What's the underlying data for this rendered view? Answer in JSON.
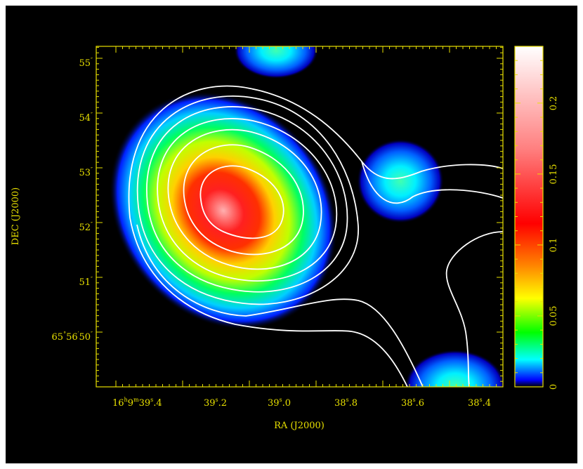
{
  "colors": {
    "background": "#000000",
    "frame": "#e8e000",
    "labels": "#e8e000",
    "contours": "#ffffff"
  },
  "image": {
    "colormap": [
      "#000000",
      "#0000ff",
      "#00ffff",
      "#00ff00",
      "#ffff00",
      "#ff8000",
      "#ff0000",
      "#ffffff"
    ]
  },
  "axes": {
    "x_label": "RA (J2000)",
    "y_label": "DEC (J2000)",
    "x_ticks": [
      {
        "h": "16",
        "m": "9",
        "s": "39",
        "f": ".4",
        "prefix": true
      },
      {
        "s": "39",
        "f": ".2"
      },
      {
        "s": "39",
        "f": ".0"
      },
      {
        "s": "38",
        "f": ".8"
      },
      {
        "s": "38",
        "f": ".6"
      },
      {
        "s": "38",
        "f": ".4"
      }
    ],
    "y_ticks": [
      {
        "deg": "65",
        "arcmin": "56",
        "arcsec": "50",
        "prefix": true
      },
      {
        "arcsec": "51"
      },
      {
        "arcsec": "52"
      },
      {
        "arcsec": "53"
      },
      {
        "arcsec": "54"
      },
      {
        "arcsec": "55"
      }
    ]
  },
  "colorbar": {
    "ticks": [
      "0",
      "0.05",
      "0.1",
      "0.15",
      "0.2"
    ],
    "min": 0,
    "max": 0.24
  }
}
